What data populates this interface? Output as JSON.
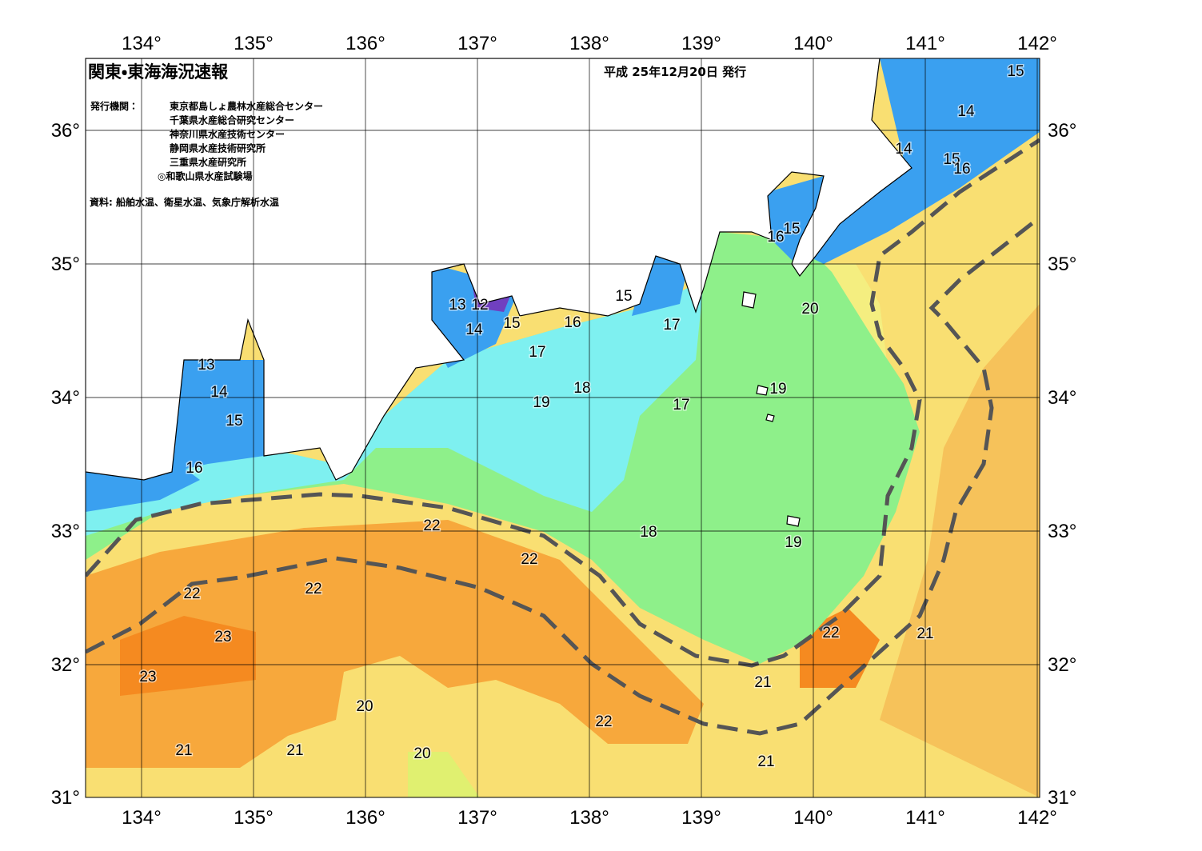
{
  "header": {
    "title": "関東・東海海況速報",
    "date": "平成 25年12月20日 発行"
  },
  "agencies_label": "発行機関：",
  "agencies": [
    "東京都島しょ農林水産総合センター",
    "千葉県水産総合研究センター",
    "神奈川県水産技術センター",
    "静岡県水産技術研究所",
    "三重県水産研究所",
    "◎和歌山県水産試験場"
  ],
  "source": "資料: 船舶水温、衛星水温、気象庁解析水温",
  "map": {
    "lon_labels": [
      "134°",
      "135°",
      "136°",
      "137°",
      "138°",
      "139°",
      "140°",
      "141°",
      "142°"
    ],
    "lat_labels": [
      "36°",
      "35°",
      "34°",
      "33°",
      "32°",
      "31°"
    ],
    "contour_labels": [
      "15",
      "14",
      "14",
      "15",
      "16",
      "16",
      "15",
      "20",
      "13",
      "12",
      "14",
      "15",
      "16",
      "15",
      "17",
      "17",
      "18",
      "19",
      "19",
      "17",
      "13",
      "14",
      "15",
      "16",
      "22",
      "22",
      "18",
      "19",
      "22",
      "22",
      "23",
      "23",
      "22",
      "21",
      "21",
      "20",
      "22",
      "21",
      "21",
      "20",
      "21"
    ]
  }
}
